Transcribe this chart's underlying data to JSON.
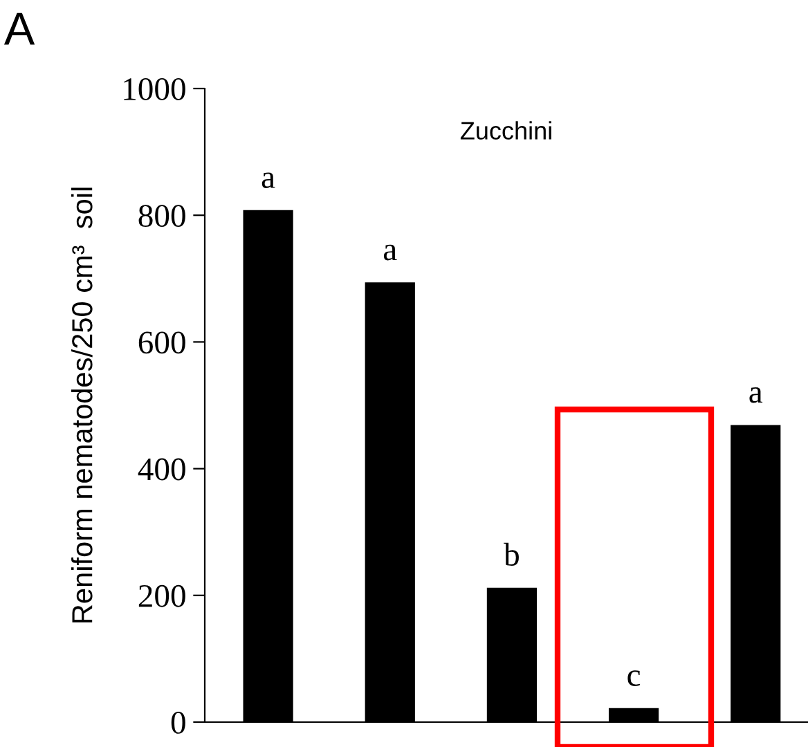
{
  "chart_data": {
    "type": "bar",
    "title": "A",
    "ylabel": "Reniform nematodes/250 cm³  soil",
    "annotations": [
      "Zucchini"
    ],
    "categories": [
      null,
      null,
      null,
      null,
      null
    ],
    "values": [
      808,
      694,
      212,
      22,
      469
    ],
    "value_labels": [
      "a",
      "a",
      "b",
      "c",
      "a"
    ],
    "color": "#000000",
    "ylim": [
      0,
      1000
    ],
    "yticks": [
      0,
      200,
      400,
      600,
      800,
      1000
    ],
    "grid": false,
    "legend": false
  }
}
